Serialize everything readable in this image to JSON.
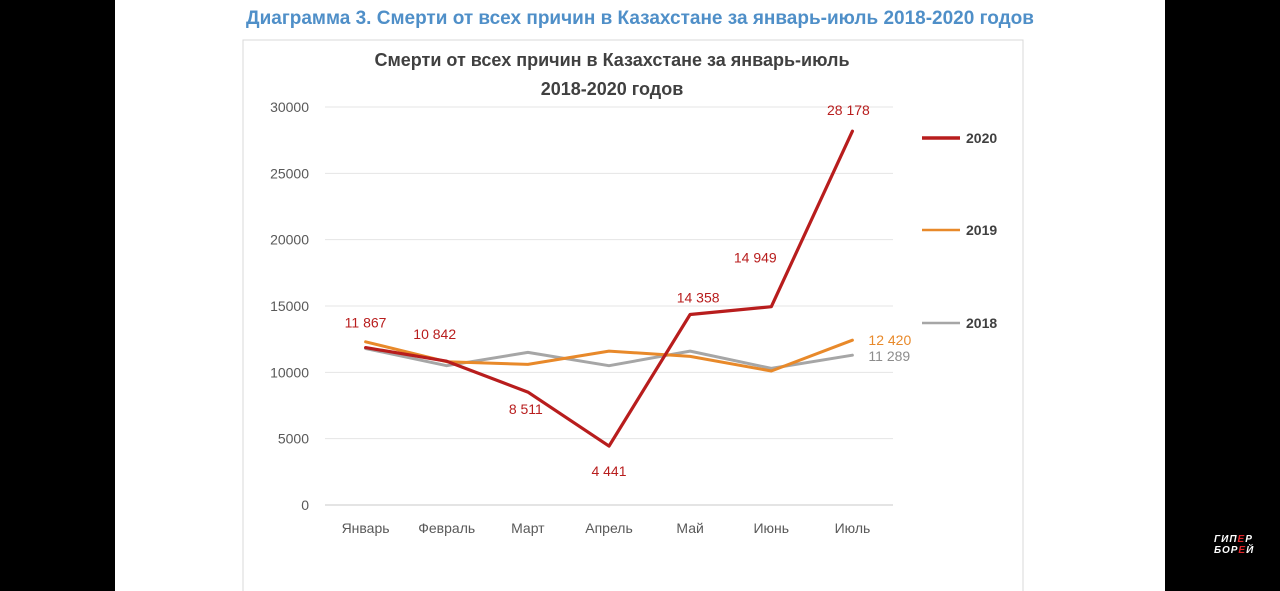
{
  "caption": "Диаграмма 3. Смерти от всех причин в Казахстане за январь-июль 2018-2020 годов",
  "logo": {
    "line1_a": "ГИП",
    "line1_b": "Е",
    "line1_c": "Р",
    "line2_a": "БОР",
    "line2_b": "Е",
    "line2_c": "Й"
  },
  "chart_data": {
    "type": "line",
    "title_line1": "Смерти от всех причин в Казахстане за январь-июль",
    "title_line2": "2018-2020 годов",
    "categories": [
      "Январь",
      "Февраль",
      "Март",
      "Апрель",
      "Май",
      "Июнь",
      "Июль"
    ],
    "ylim": [
      0,
      30000
    ],
    "yticks": [
      "0",
      "5000",
      "10000",
      "15000",
      "20000",
      "25000",
      "30000"
    ],
    "grid": true,
    "legend_position": "right",
    "series": [
      {
        "name": "2020",
        "color": "#b81d1d",
        "values": [
          11867,
          10842,
          8511,
          4441,
          14358,
          14949,
          28178
        ],
        "labels": [
          "11 867",
          "10 842",
          "8 511",
          "4 441",
          "14 358",
          "14 949",
          "28 178"
        ]
      },
      {
        "name": "2019",
        "color": "#e8892a",
        "values": [
          12300,
          10800,
          10600,
          11600,
          11200,
          10100,
          12420
        ],
        "labels": [
          "",
          "",
          "",
          "",
          "",
          "",
          "12 420"
        ]
      },
      {
        "name": "2018",
        "color": "#a6a6a6",
        "values": [
          11800,
          10500,
          11500,
          10500,
          11600,
          10300,
          11289
        ],
        "labels": [
          "",
          "",
          "",
          "",
          "",
          "",
          "11 289"
        ]
      }
    ]
  }
}
